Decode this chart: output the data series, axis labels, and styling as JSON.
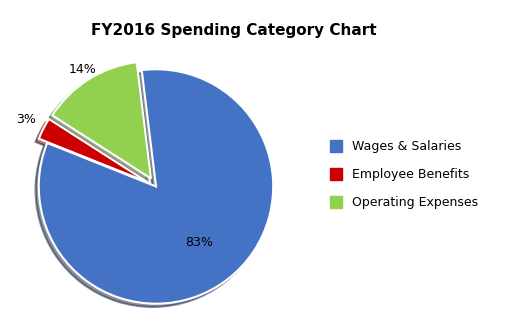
{
  "title": "FY2016 Spending Category Chart",
  "labels": [
    "Wages & Salaries",
    "Employee Benefits",
    "Operating Expenses"
  ],
  "values": [
    83,
    3,
    14
  ],
  "colors": [
    "#4472C4",
    "#CC0000",
    "#92D050"
  ],
  "pct_labels": [
    "83%",
    "3%",
    "14%"
  ],
  "startangle": 97,
  "background_color": "#FFFFFF",
  "title_fontsize": 11,
  "label_fontsize": 9,
  "legend_fontsize": 9,
  "explode": [
    0.0,
    0.08,
    0.08
  ]
}
